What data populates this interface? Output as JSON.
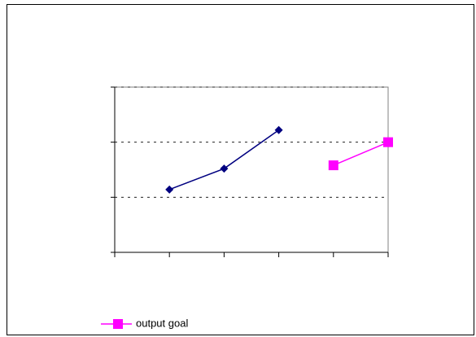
{
  "chart_data": {
    "type": "line",
    "x": [
      1,
      2,
      3,
      4,
      5
    ],
    "xlim": [
      0,
      5
    ],
    "xticks": [
      0,
      1,
      2,
      3,
      4,
      5
    ],
    "ylim": [
      0,
      3
    ],
    "yticks": [
      0,
      1,
      2,
      3
    ],
    "grid": true,
    "legend": "bottom-left",
    "series": [
      {
        "color": "#000080",
        "marker": "diamond",
        "values": [
          1.14,
          1.52,
          2.22,
          null,
          null
        ]
      },
      {
        "name": "output goal",
        "color": "#ff00ff",
        "marker": "square",
        "values": [
          null,
          null,
          null,
          1.58,
          2.0
        ]
      }
    ]
  }
}
